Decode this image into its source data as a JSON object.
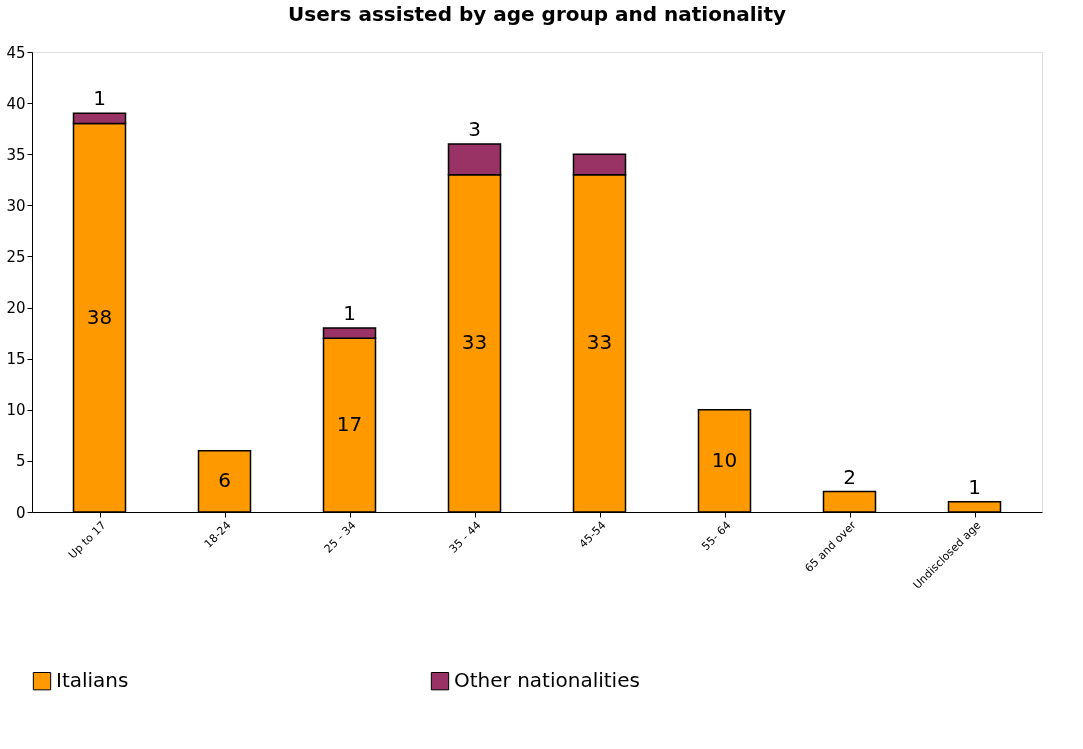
{
  "chart_data": {
    "type": "bar",
    "title": "Users assisted by age group and nationality",
    "categories": [
      "Up to 17",
      "18-24",
      "25 - 34",
      "35 - 44",
      "45-54",
      "55- 64",
      "65 and over",
      "Undisclosed age"
    ],
    "stacked": true,
    "series": [
      {
        "name": "Italians",
        "color": "#ff9900",
        "values": [
          38,
          6,
          17,
          33,
          33,
          10,
          2,
          1
        ],
        "value_labels": [
          "38",
          "6",
          "17",
          "33",
          "33",
          "10",
          "2",
          "1"
        ]
      },
      {
        "name": "Other nationalities",
        "color": "#993366",
        "values": [
          1,
          null,
          1,
          3,
          2,
          null,
          null,
          null
        ],
        "value_labels": [
          "1",
          null,
          "1",
          "3",
          null,
          null,
          null,
          null
        ]
      }
    ],
    "ylim": [
      0,
      45
    ],
    "yticks": [
      0,
      5,
      10,
      15,
      20,
      25,
      30,
      35,
      40,
      45
    ],
    "grid": false,
    "legend": "bottom"
  }
}
